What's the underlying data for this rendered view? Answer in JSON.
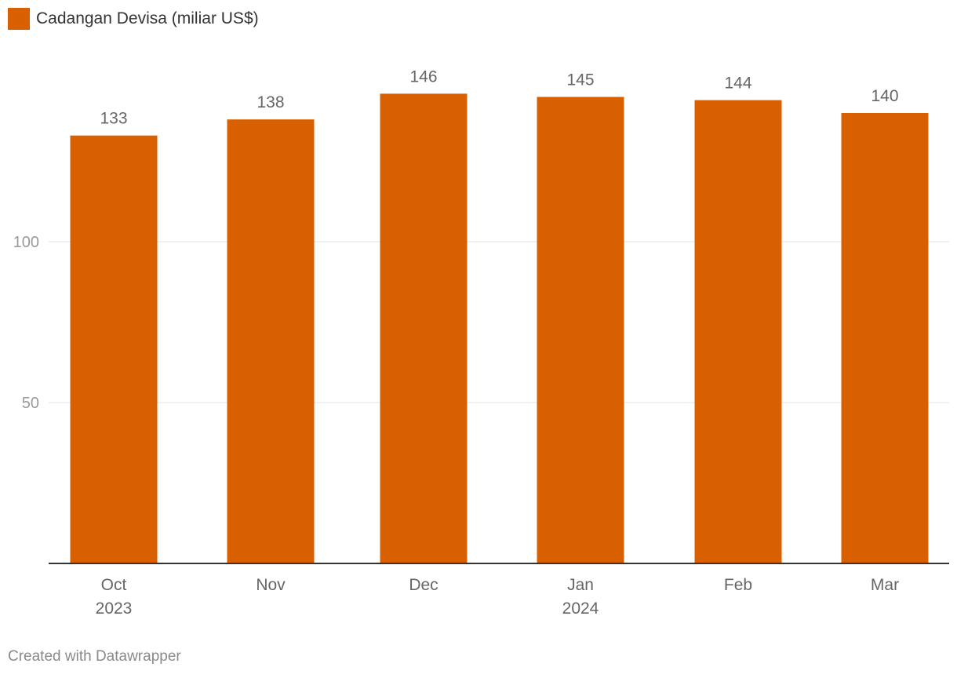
{
  "legend": {
    "label": "Cadangan Devisa (miliar US$)",
    "color": "#d96000"
  },
  "footer": {
    "credit": "Created with Datawrapper"
  },
  "chart_data": {
    "type": "bar",
    "categories": [
      "Oct 2023",
      "Nov",
      "Dec",
      "Jan 2024",
      "Feb",
      "Mar"
    ],
    "category_labels": [
      [
        "Oct",
        "2023"
      ],
      [
        "Nov"
      ],
      [
        "Dec"
      ],
      [
        "Jan",
        "2024"
      ],
      [
        "Feb"
      ],
      [
        "Mar"
      ]
    ],
    "series": [
      {
        "name": "Cadangan Devisa (miliar US$)",
        "values": [
          133,
          138,
          146,
          145,
          144,
          140
        ],
        "data_labels": [
          "133",
          "138",
          "146",
          "145",
          "144",
          "140"
        ],
        "color": "#d96000"
      }
    ],
    "y_ticks": [
      50,
      100
    ],
    "y_tick_labels": [
      "50",
      "100"
    ],
    "ylim": [
      0,
      150
    ],
    "grid": "horizontal",
    "legend_position": "top-left"
  }
}
